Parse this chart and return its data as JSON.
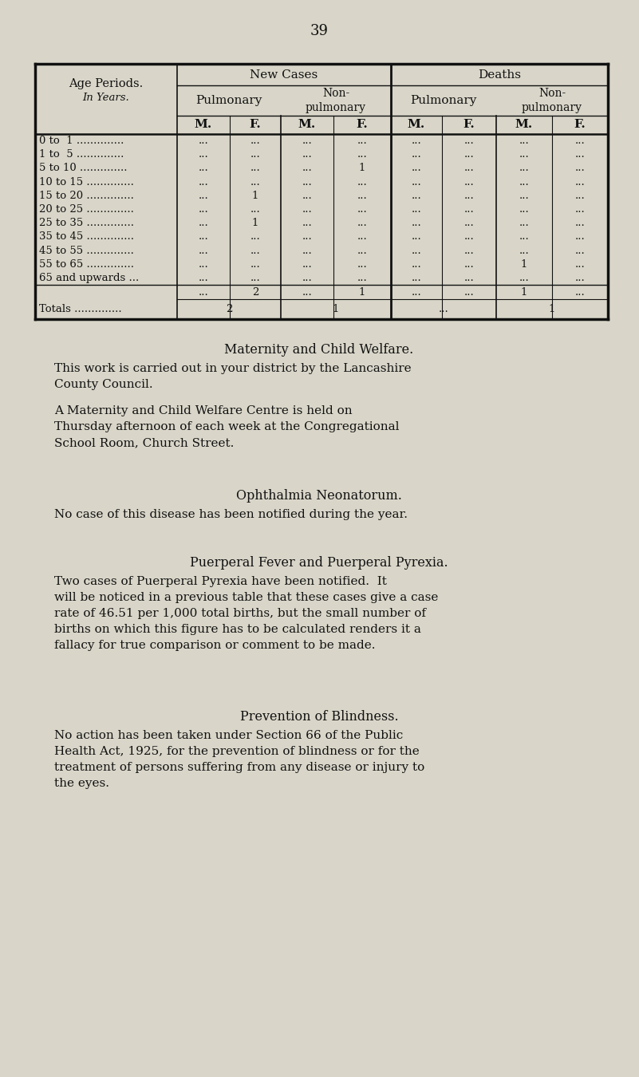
{
  "bg_color": "#d9d6c9",
  "text_color": "#111111",
  "page_number": "39",
  "table": {
    "age_rows": [
      [
        "0 to  1 ..............",
        "...",
        "...",
        "...",
        "...",
        "...",
        "...",
        "...",
        "..."
      ],
      [
        "1 to  5 ..............",
        "...",
        "...",
        "...",
        "...",
        "...",
        "...",
        "...",
        "..."
      ],
      [
        "5 to 10 ..............",
        "...",
        "...",
        "...",
        "1",
        "...",
        "...",
        "...",
        "..."
      ],
      [
        "10 to 15 ..............",
        "...",
        "...",
        "...",
        "...",
        "...",
        "...",
        "...",
        "..."
      ],
      [
        "15 to 20 ..............",
        "...",
        "1",
        "...",
        "...",
        "...",
        "...",
        "...",
        "..."
      ],
      [
        "20 to 25 ..............",
        "...",
        "...",
        "...",
        "...",
        "...",
        "...",
        "...",
        "..."
      ],
      [
        "25 to 35 ..............",
        "...",
        "1",
        "...",
        "...",
        "...",
        "...",
        "...",
        "..."
      ],
      [
        "35 to 45 ..............",
        "...",
        "...",
        "...",
        "...",
        "...",
        "...",
        "...",
        "..."
      ],
      [
        "45 to 55 ..............",
        "...",
        "...",
        "...",
        "...",
        "...",
        "...",
        "...",
        "..."
      ],
      [
        "55 to 65 ..............",
        "...",
        "...",
        "...",
        "...",
        "...",
        "...",
        "1",
        "..."
      ],
      [
        "65 and upwards ...",
        "...",
        "...",
        "...",
        "...",
        "...",
        "...",
        "...",
        "..."
      ]
    ],
    "totals_row1": [
      "",
      "...",
      "2",
      "...",
      "1",
      "...",
      "...",
      "1",
      "..."
    ],
    "totals_label": "Totals ..............",
    "totals_row2": [
      "2",
      "",
      "1",
      "",
      "...",
      "",
      "1",
      ""
    ]
  },
  "sections": [
    {
      "title": "Maternity and Child Welfare.",
      "para1": "This work is carried out in your district by the Lancashire\nCounty Council.",
      "para2": "A Maternity and Child Welfare Centre is held on\nThursday afternoon of each week at the Congregational\nSchool Room, Church Street."
    },
    {
      "title": "Ophthalmia Neonatorum.",
      "para1": "No case of this disease has been notified during the year.",
      "para2": ""
    },
    {
      "title": "Puerperal Fever and Puerperal Pyrexia.",
      "para1": "Two cases of Puerperal Pyrexia have been notified.  It\nwill be noticed in a previous table that these cases give a case\nrate of 46.51 per 1,000 total births, but the small number of\nbirths on which this figure has to be calculated renders it a\nfallacy for true comparison or comment to be made.",
      "para2": ""
    },
    {
      "title": "Prevention of Blindness.",
      "para1": "No action has been taken under Section 66 of the Public\nHealth Act, 1925, for the prevention of blindness or for the\ntreatment of persons suffering from any disease or injury to\nthe eyes.",
      "para2": ""
    }
  ]
}
